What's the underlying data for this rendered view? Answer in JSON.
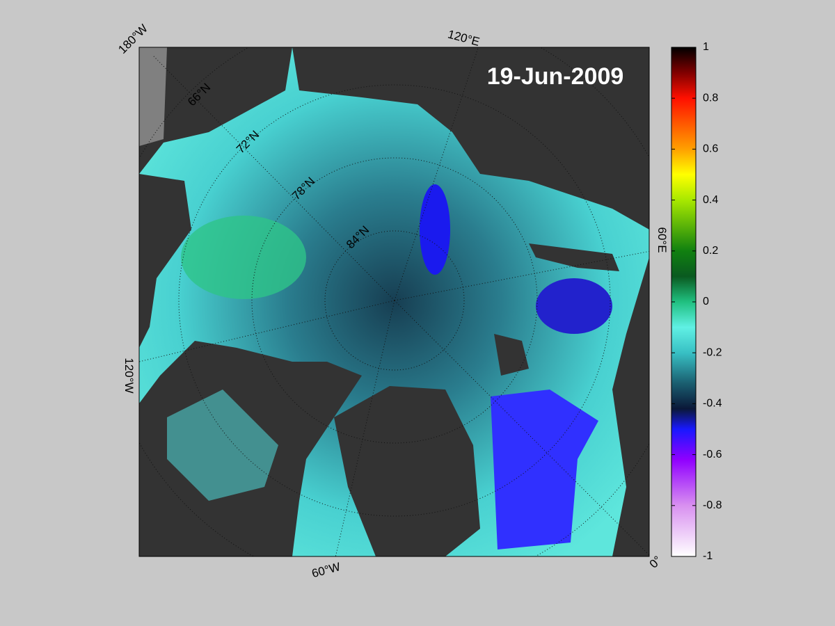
{
  "map": {
    "date_label": "19-Jun-2009",
    "longitude_labels": [
      "180°W",
      "120°E",
      "60°E",
      "0°",
      "60°W",
      "120°W"
    ],
    "latitude_labels": [
      "66°N",
      "72°N",
      "78°N",
      "84°N"
    ]
  },
  "colorbar": {
    "lim": [
      -1,
      1
    ],
    "ticks": [
      -1,
      -0.8,
      -0.6,
      -0.4,
      -0.2,
      0,
      0.2,
      0.4,
      0.6,
      0.8,
      1
    ],
    "stops": [
      {
        "value": -1,
        "color": "#ffffff"
      },
      {
        "value": -0.8,
        "color": "#d890f0"
      },
      {
        "value": -0.62,
        "color": "#9000ff"
      },
      {
        "value": -0.5,
        "color": "#1818ff"
      },
      {
        "value": -0.42,
        "color": "#0a1838"
      },
      {
        "value": -0.32,
        "color": "#1a5e70"
      },
      {
        "value": -0.2,
        "color": "#38c0c4"
      },
      {
        "value": -0.1,
        "color": "#60f0e4"
      },
      {
        "value": 0,
        "color": "#20c080"
      },
      {
        "value": 0.1,
        "color": "#0a5a20"
      },
      {
        "value": 0.2,
        "color": "#108010"
      },
      {
        "value": 0.4,
        "color": "#a8e800"
      },
      {
        "value": 0.5,
        "color": "#ffff00"
      },
      {
        "value": 0.6,
        "color": "#ffa000"
      },
      {
        "value": 0.8,
        "color": "#ff1000"
      },
      {
        "value": 0.9,
        "color": "#800000"
      },
      {
        "value": 1,
        "color": "#000000"
      }
    ]
  }
}
